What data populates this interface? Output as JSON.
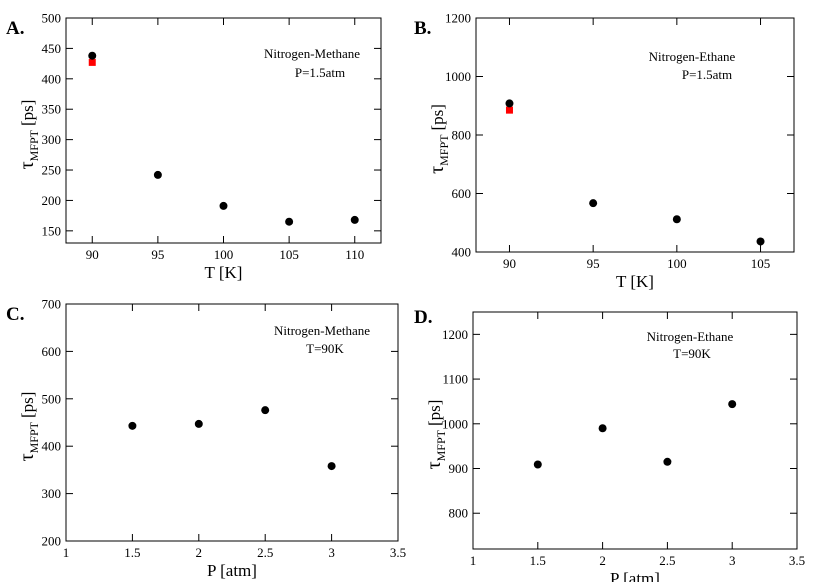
{
  "chart_data": [
    {
      "type": "scatter",
      "panel_label": "A.",
      "annotation": [
        "Nitrogen-Methane",
        "P=1.5atm"
      ],
      "xlabel": "T [K]",
      "ylabel_main": "τ",
      "ylabel_sub": "MFPT",
      "ylabel_unit": "[ps]",
      "xlim": [
        88,
        112
      ],
      "ylim": [
        130,
        500
      ],
      "xticks": [
        90,
        95,
        100,
        105,
        110
      ],
      "yticks": [
        150,
        200,
        250,
        300,
        350,
        400,
        450,
        500
      ],
      "series": [
        {
          "name": "black-circles",
          "color": "#000000",
          "marker": "circle",
          "x": [
            90,
            95,
            100,
            105,
            110
          ],
          "y": [
            438,
            242,
            191,
            165,
            168
          ]
        },
        {
          "name": "red-squares",
          "color": "#ff0000",
          "marker": "square",
          "x": [
            90
          ],
          "y": [
            427
          ]
        }
      ]
    },
    {
      "type": "scatter",
      "panel_label": "B.",
      "annotation": [
        "Nitrogen-Ethane",
        "P=1.5atm"
      ],
      "xlabel": "T [K]",
      "ylabel_main": "τ",
      "ylabel_sub": "MFPT",
      "ylabel_unit": "[ps]",
      "xlim": [
        88,
        107
      ],
      "ylim": [
        400,
        1200
      ],
      "xticks": [
        90,
        95,
        100,
        105
      ],
      "yticks": [
        400,
        600,
        800,
        1000,
        1200
      ],
      "series": [
        {
          "name": "black-circles",
          "color": "#000000",
          "marker": "circle",
          "x": [
            90,
            95,
            100,
            105
          ],
          "y": [
            908,
            567,
            512,
            436
          ]
        },
        {
          "name": "red-squares",
          "color": "#ff0000",
          "marker": "square",
          "x": [
            90
          ],
          "y": [
            885
          ]
        }
      ]
    },
    {
      "type": "scatter",
      "panel_label": "C.",
      "annotation": [
        "Nitrogen-Methane",
        "T=90K"
      ],
      "xlabel": "P [atm]",
      "ylabel_main": "τ",
      "ylabel_sub": "MFPT",
      "ylabel_unit": "[ps]",
      "xlim": [
        1,
        3.5
      ],
      "ylim": [
        200,
        700
      ],
      "xticks": [
        1,
        1.5,
        2,
        2.5,
        3,
        3.5
      ],
      "yticks": [
        200,
        300,
        400,
        500,
        600,
        700
      ],
      "series": [
        {
          "name": "black-circles",
          "color": "#000000",
          "marker": "circle",
          "x": [
            1.5,
            2,
            2.5,
            3
          ],
          "y": [
            443,
            447,
            476,
            358
          ]
        }
      ]
    },
    {
      "type": "scatter",
      "panel_label": "D.",
      "annotation": [
        "Nitrogen-Ethane",
        "T=90K"
      ],
      "xlabel": "P [atm]",
      "ylabel_main": "τ",
      "ylabel_sub": "MFPT",
      "ylabel_unit": "[ps]",
      "xlim": [
        1,
        3.5
      ],
      "ylim": [
        720,
        1250
      ],
      "xticks": [
        1,
        1.5,
        2,
        2.5,
        3,
        3.5
      ],
      "yticks": [
        800,
        900,
        1000,
        1100,
        1200
      ],
      "series": [
        {
          "name": "black-circles",
          "color": "#000000",
          "marker": "circle",
          "x": [
            1.5,
            2,
            2.5,
            3
          ],
          "y": [
            909,
            990,
            915,
            1044
          ]
        }
      ]
    }
  ]
}
